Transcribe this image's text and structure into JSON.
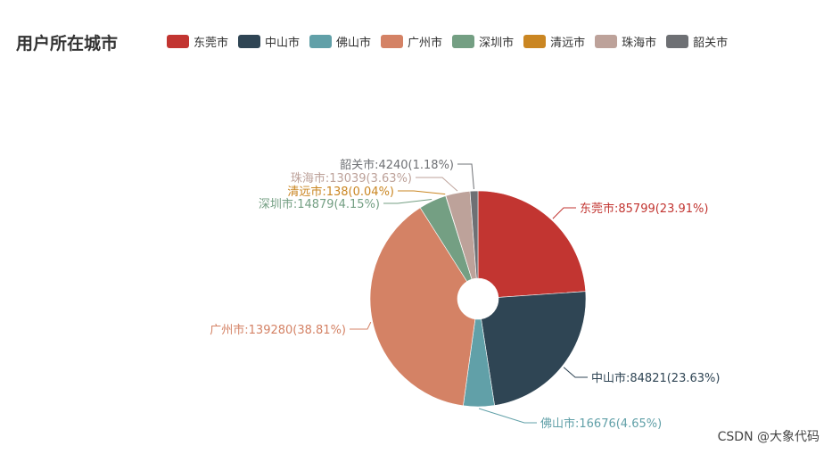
{
  "chart_data": {
    "type": "pie",
    "title": "用户所在城市",
    "legend_position": "top",
    "inner_radius_fraction": 0.19,
    "slices": [
      {
        "name": "东莞市",
        "value": 85799,
        "percent": "23.91%",
        "color": "#c23531"
      },
      {
        "name": "中山市",
        "value": 84821,
        "percent": "23.63%",
        "color": "#2f4554"
      },
      {
        "name": "佛山市",
        "value": 16676,
        "percent": "4.65%",
        "color": "#61a0a8"
      },
      {
        "name": "广州市",
        "value": 139280,
        "percent": "38.81%",
        "color": "#d48265"
      },
      {
        "name": "深圳市",
        "value": 14879,
        "percent": "4.15%",
        "color": "#749f83"
      },
      {
        "name": "清远市",
        "value": 138,
        "percent": "0.04%",
        "color": "#ca8622"
      },
      {
        "name": "珠海市",
        "value": 13039,
        "percent": "3.63%",
        "color": "#bda29a"
      },
      {
        "name": "韶关市",
        "value": 4240,
        "percent": "1.18%",
        "color": "#6e7074"
      }
    ]
  },
  "watermark": "CSDN @大象代码"
}
